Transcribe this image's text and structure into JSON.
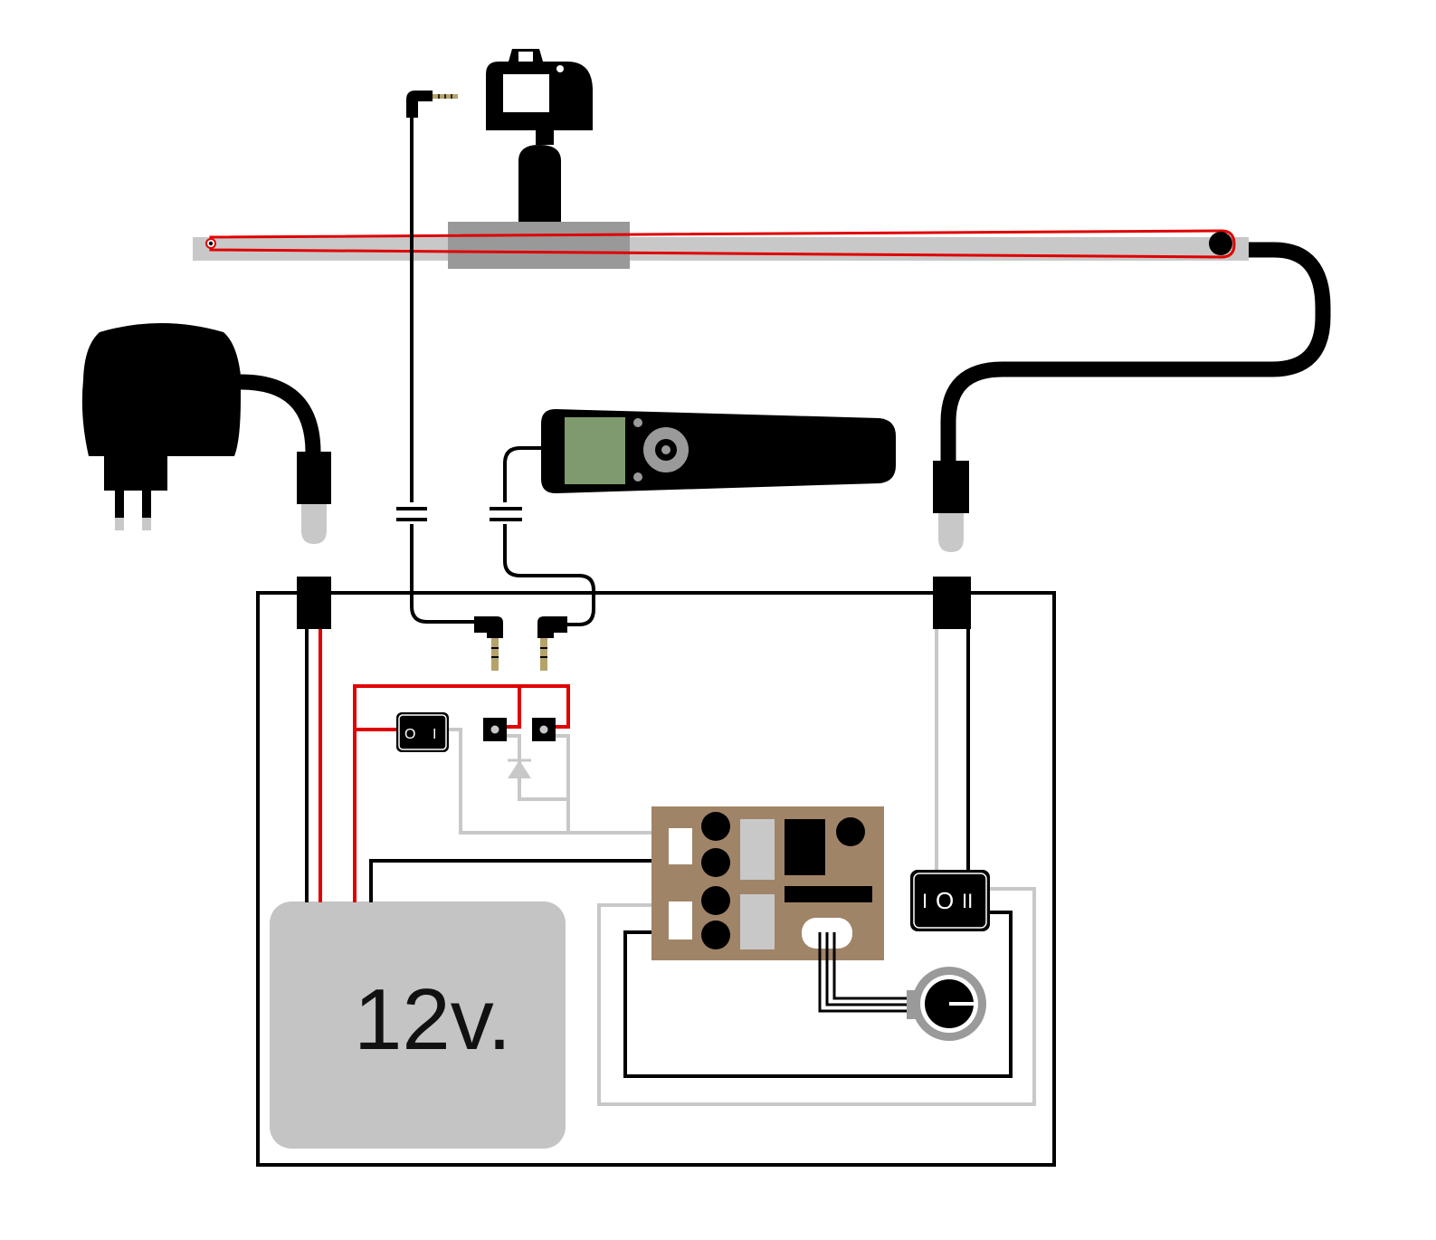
{
  "battery": {
    "label": "12v."
  },
  "power_switch": {
    "off_mark": "O",
    "on_mark": "I"
  },
  "motor_switch": {
    "mark_left": "I",
    "mark_center": "O",
    "mark_right": "II"
  },
  "colors": {
    "wire_black": "#000000",
    "wire_red": "#e00000",
    "wire_grey": "#c8c8c8",
    "rail": "#c8c8c8",
    "carriage": "#999999",
    "battery": "#c4c4c4",
    "controller_board": "#a08468",
    "remote_screen": "#7f9a6e",
    "jack_gold": "#b5a36a"
  },
  "icons": [
    "camera-icon",
    "wall-adapter-icon",
    "intervalometer-remote-icon",
    "rotary-knob-icon",
    "diode-icon",
    "audio-jack-icon"
  ]
}
